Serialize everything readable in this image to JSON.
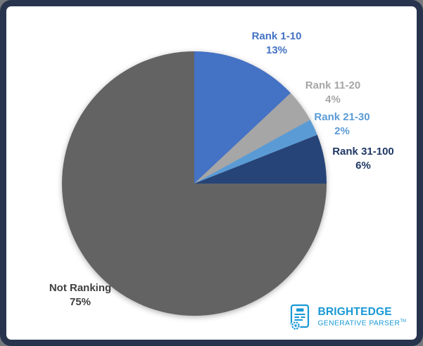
{
  "chart_data": {
    "type": "pie",
    "title": "",
    "start_angle_deg": 0,
    "direction": "clockwise",
    "legend_position": "none",
    "slices": [
      {
        "label": "Rank 1-10",
        "value": 13,
        "pct_label": "13%",
        "color": "#4472C4",
        "label_color": "#4472C4"
      },
      {
        "label": "Rank 11-20",
        "value": 4,
        "pct_label": "4%",
        "color": "#A6A6A6",
        "label_color": "#A6A6A6"
      },
      {
        "label": "Rank 21-30",
        "value": 2,
        "pct_label": "2%",
        "color": "#5B9BD5",
        "label_color": "#5B9BD5"
      },
      {
        "label": "Rank 31-100",
        "value": 6,
        "pct_label": "6%",
        "color": "#264478",
        "label_color": "#1F3864"
      },
      {
        "label": "Not Ranking",
        "value": 75,
        "pct_label": "75%",
        "color": "#636363",
        "label_color": "#3F3F3F"
      }
    ]
  },
  "branding": {
    "name": "BRIGHTEDGE",
    "subtitle": "GENERATIVE PARSER",
    "trademark": "TM",
    "color": "#1898D5",
    "icon": "document-certificate-icon"
  },
  "frame": {
    "border_color": "#28344E",
    "background": "#FFFFFF"
  }
}
